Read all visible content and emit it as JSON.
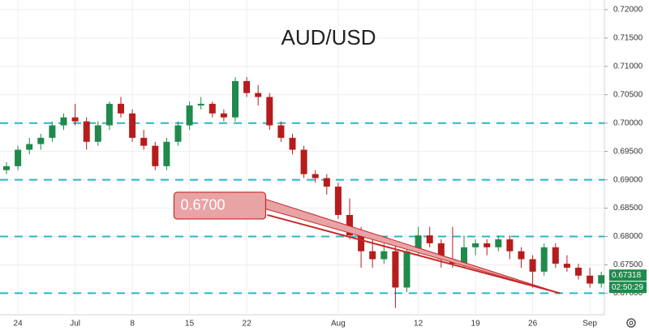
{
  "chart_data": {
    "type": "candlestick",
    "title": "AUD/USD",
    "categories": [
      null,
      "24",
      null,
      null,
      null,
      null,
      "Jul",
      null,
      null,
      null,
      null,
      "8",
      null,
      null,
      null,
      null,
      "15",
      null,
      null,
      null,
      null,
      "22",
      null,
      null,
      null,
      null,
      null,
      null,
      null,
      "Aug",
      null,
      null,
      null,
      null,
      null,
      null,
      "12",
      null,
      null,
      null,
      null,
      "19",
      null,
      null,
      null,
      null,
      "26",
      null,
      null,
      null,
      null,
      "Sep",
      null
    ],
    "open": [
      0.6917,
      0.6924,
      0.6953,
      0.6963,
      0.6974,
      0.6996,
      0.701,
      0.7003,
      0.6967,
      0.6996,
      0.7034,
      0.7017,
      0.6974,
      0.696,
      0.6924,
      0.6967,
      0.6996,
      0.7031,
      0.7034,
      0.7017,
      0.701,
      0.7074,
      0.7053,
      0.7046,
      0.6996,
      0.6974,
      0.6953,
      0.691,
      0.6903,
      0.6888,
      0.6838,
      0.6802,
      0.6774,
      0.676,
      0.6774,
      0.671,
      0.6774,
      0.6802,
      0.6788,
      0.676,
      0.6752,
      0.6781,
      0.6788,
      0.6781,
      0.6795,
      0.6774,
      0.676,
      0.6738,
      0.6781,
      0.6752,
      0.6745,
      0.6731,
      0.6717
    ],
    "high": [
      0.6931,
      0.696,
      0.6974,
      0.6981,
      0.7003,
      0.7017,
      0.7034,
      0.701,
      0.7003,
      0.7038,
      0.7046,
      0.7024,
      0.6988,
      0.6967,
      0.6974,
      0.7003,
      0.7038,
      0.7046,
      0.7038,
      0.7024,
      0.7081,
      0.7081,
      0.7067,
      0.7053,
      0.7003,
      0.6981,
      0.696,
      0.6917,
      0.691,
      0.6895,
      0.6867,
      0.6817,
      0.6795,
      0.6788,
      0.6788,
      0.6781,
      0.6817,
      0.6817,
      0.6795,
      0.6817,
      0.6802,
      0.6795,
      0.6795,
      0.6802,
      0.6802,
      0.6781,
      0.6767,
      0.6788,
      0.6788,
      0.6767,
      0.6752,
      0.6745,
      0.6738
    ],
    "low": [
      0.691,
      0.6917,
      0.6945,
      0.6953,
      0.6967,
      0.6988,
      0.6996,
      0.6953,
      0.696,
      0.6988,
      0.701,
      0.6967,
      0.6953,
      0.6917,
      0.6917,
      0.696,
      0.6988,
      0.7024,
      0.701,
      0.7003,
      0.7003,
      0.7046,
      0.7031,
      0.6988,
      0.6967,
      0.6945,
      0.6903,
      0.6895,
      0.6874,
      0.6831,
      0.6795,
      0.6745,
      0.6745,
      0.6752,
      0.6674,
      0.6702,
      0.6767,
      0.6781,
      0.6745,
      0.6745,
      0.6745,
      0.6767,
      0.6767,
      0.6774,
      0.676,
      0.6745,
      0.671,
      0.6731,
      0.6745,
      0.6738,
      0.6724,
      0.671,
      0.671
    ],
    "close": [
      0.6924,
      0.6953,
      0.6963,
      0.6974,
      0.6996,
      0.701,
      0.7003,
      0.6967,
      0.6996,
      0.7034,
      0.7017,
      0.6974,
      0.696,
      0.6924,
      0.6967,
      0.6996,
      0.7031,
      0.7034,
      0.7017,
      0.701,
      0.7074,
      0.7053,
      0.7046,
      0.6996,
      0.6974,
      0.6953,
      0.691,
      0.6903,
      0.6888,
      0.6838,
      0.6802,
      0.6774,
      0.676,
      0.6774,
      0.671,
      0.6774,
      0.6802,
      0.6788,
      0.676,
      0.6752,
      0.6781,
      0.6788,
      0.6781,
      0.6795,
      0.6774,
      0.676,
      0.6738,
      0.6781,
      0.6752,
      0.6745,
      0.6731,
      0.6717,
      0.67318
    ],
    "up_color": "#1f8a4c",
    "down_color": "#b71c1c",
    "ylim": [
      0.6662,
      0.7217
    ],
    "yticks": [
      {
        "value": 0.67,
        "label": "0.67000"
      },
      {
        "value": 0.675,
        "label": "0.67500"
      },
      {
        "value": 0.68,
        "label": "0.68000"
      },
      {
        "value": 0.685,
        "label": "0.68500"
      },
      {
        "value": 0.69,
        "label": "0.69000"
      },
      {
        "value": 0.695,
        "label": "0.69500"
      },
      {
        "value": 0.7,
        "label": "0.70000"
      },
      {
        "value": 0.705,
        "label": "0.70500"
      },
      {
        "value": 0.71,
        "label": "0.71000"
      },
      {
        "value": 0.715,
        "label": "0.71500"
      },
      {
        "value": 0.72,
        "label": "0.72000"
      }
    ],
    "grid": true,
    "hlines": [
      0.7,
      0.69,
      0.68,
      0.67
    ],
    "hline_color": "#29b6c6",
    "trendline": {
      "label": "0.6700",
      "x": [
        22.8,
        48.4
      ],
      "y": [
        0.6838,
        0.67
      ],
      "color": "#c62828"
    },
    "last_price": {
      "value": 0.67318,
      "label": "0.67318"
    },
    "countdown": "02:50:29"
  }
}
